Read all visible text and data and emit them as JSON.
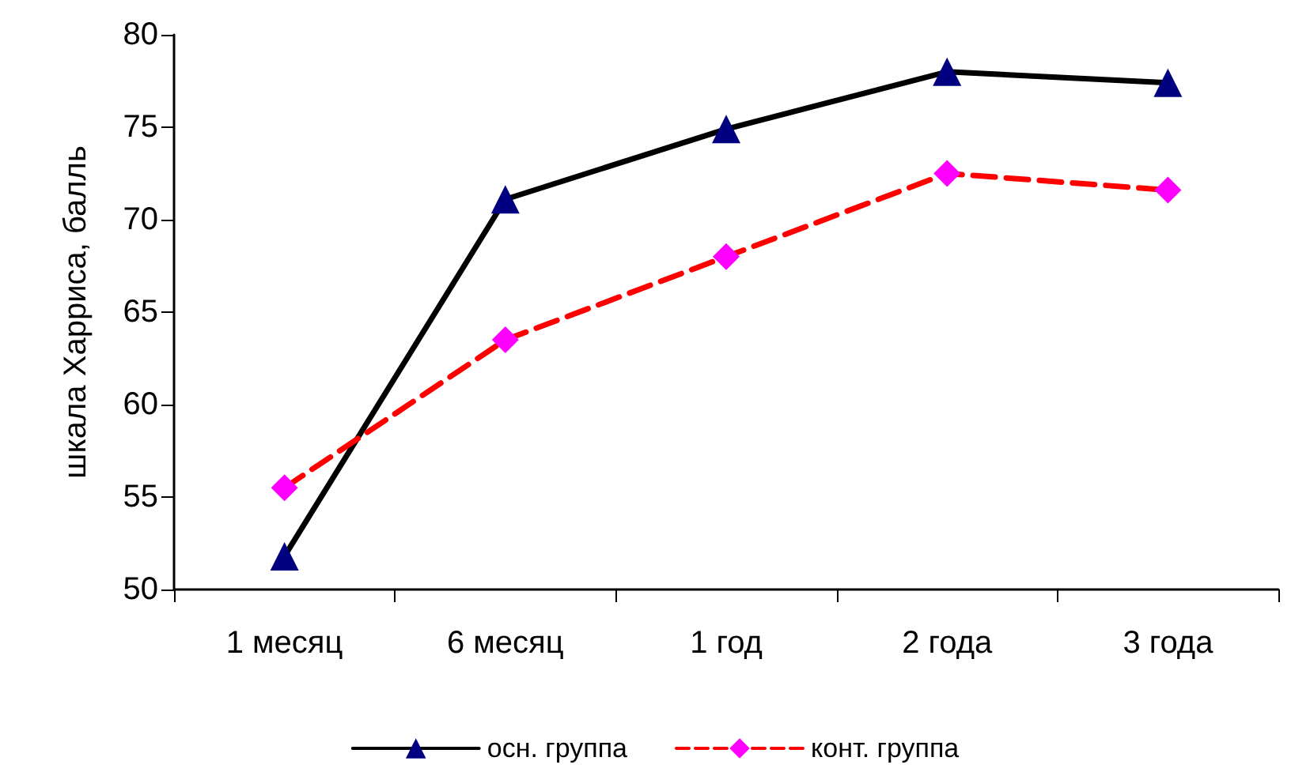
{
  "chart_data": {
    "type": "line",
    "ylabel": "шкала Харриса, балль",
    "categories": [
      "1 месяц",
      "6 месяц",
      "1 год",
      "2 года",
      "3 года"
    ],
    "series": [
      {
        "name": "осн. группа",
        "color": "#000000",
        "colors": [
          "#000080",
          "#000080",
          "#000080",
          "#000080",
          "#000080"
        ],
        "marker": "triangle",
        "line_style": "solid",
        "values": [
          51.8,
          71.1,
          74.9,
          78.0,
          77.4
        ]
      },
      {
        "name": "конт. группа",
        "color": "#ff0000",
        "colors": [
          "#ff00ff",
          "#ff00ff",
          "#ff00ff",
          "#ff00ff",
          "#ff00ff"
        ],
        "marker": "diamond",
        "line_style": "dashed",
        "values": [
          55.5,
          63.5,
          68.0,
          72.5,
          71.6
        ]
      }
    ],
    "ylim": [
      50,
      80
    ],
    "yticks": [
      50,
      55,
      60,
      65,
      70,
      75,
      80
    ],
    "grid": false,
    "legend": "bottom"
  }
}
